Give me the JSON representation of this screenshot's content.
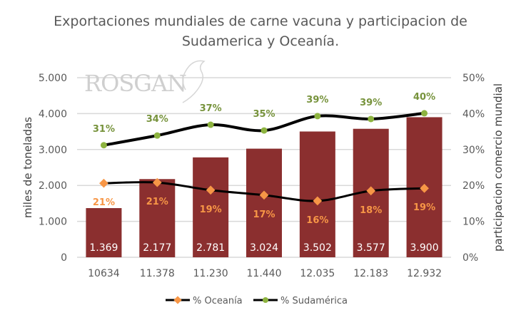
{
  "chart_data": {
    "type": "bar+line",
    "title": [
      "Exportaciones mundiales de carne vacuna y participacion de",
      "Sudamerica y Oceanía."
    ],
    "watermark": "ROSGAN",
    "categories": [
      "10634",
      "11.378",
      "11.230",
      "11.440",
      "12.035",
      "12.183",
      "12.932"
    ],
    "bars": {
      "values": [
        1369,
        2177,
        2781,
        3024,
        3502,
        3577,
        3900
      ],
      "labels": [
        "1.369",
        "2.177",
        "2.781",
        "3.024",
        "3.502",
        "3.577",
        "3.900"
      ],
      "color": "#8B2F2F"
    },
    "series": [
      {
        "name": "% Oceanía",
        "values": [
          20.6,
          20.8,
          18.7,
          17.3,
          15.7,
          18.5,
          19.2
        ],
        "labels": [
          "21%",
          "21%",
          "19%",
          "17%",
          "16%",
          "18%",
          "19%"
        ],
        "marker": "diamond",
        "marker_color": "#F79646",
        "label_color": "#F79646",
        "line_color": "#000000"
      },
      {
        "name": "% Sudamérica",
        "values": [
          31.2,
          33.9,
          36.9,
          35.3,
          39.3,
          38.5,
          40.1
        ],
        "labels": [
          "31%",
          "34%",
          "37%",
          "35%",
          "39%",
          "39%",
          "40%"
        ],
        "marker": "circle",
        "marker_color": "#8DB33F",
        "label_color": "#77933C",
        "line_color": "#000000"
      }
    ],
    "ylabel": "miles de toneladas",
    "y2label": "participacion  comercio mundial",
    "ylim": [
      0,
      5000
    ],
    "y2lim": [
      0,
      50
    ],
    "yticks": [
      "0",
      "1.000",
      "2.000",
      "3.000",
      "4.000",
      "5.000"
    ],
    "y2ticks": [
      "0%",
      "10%",
      "20%",
      "30%",
      "40%",
      "50%"
    ],
    "grid": true,
    "legend": "bottom"
  }
}
